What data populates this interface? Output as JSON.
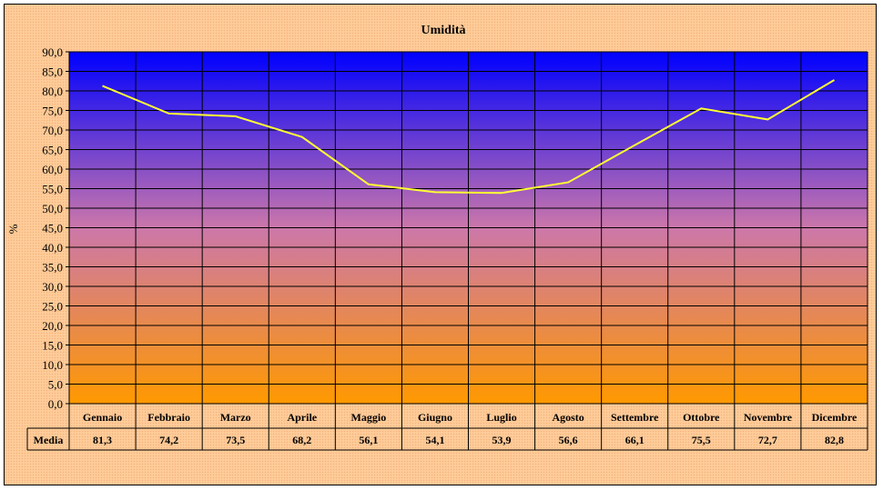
{
  "chart_data": {
    "type": "line",
    "title": "Umidità",
    "ylabel": "%",
    "xlabel": "",
    "ylim": [
      0,
      90
    ],
    "ytick_step": 5,
    "yticks": [
      "0,0",
      "5,0",
      "10,0",
      "15,0",
      "20,0",
      "25,0",
      "30,0",
      "35,0",
      "40,0",
      "45,0",
      "50,0",
      "55,0",
      "60,0",
      "65,0",
      "70,0",
      "75,0",
      "80,0",
      "85,0",
      "90,0"
    ],
    "categories": [
      "Gennaio",
      "Febbraio",
      "Marzo",
      "Aprile",
      "Maggio",
      "Giugno",
      "Luglio",
      "Agosto",
      "Settembre",
      "Ottobre",
      "Novembre",
      "Dicembre"
    ],
    "series": [
      {
        "name": "Media",
        "values": [
          81.3,
          74.2,
          73.5,
          68.2,
          56.1,
          54.1,
          53.9,
          56.6,
          66.1,
          75.5,
          72.7,
          82.8
        ],
        "labels": [
          "81,3",
          "74,2",
          "73,5",
          "68,2",
          "56,1",
          "54,1",
          "53,9",
          "56,6",
          "66,1",
          "75,5",
          "72,7",
          "82,8"
        ],
        "color": "#ffff33"
      }
    ],
    "grid": true,
    "legend": "data table below chart",
    "colors": {
      "plot_top": "#0000ff",
      "plot_mid": "#cc77aa",
      "plot_bottom": "#ff9900",
      "frame": "#ffcc99",
      "line": "#ffff33"
    }
  }
}
